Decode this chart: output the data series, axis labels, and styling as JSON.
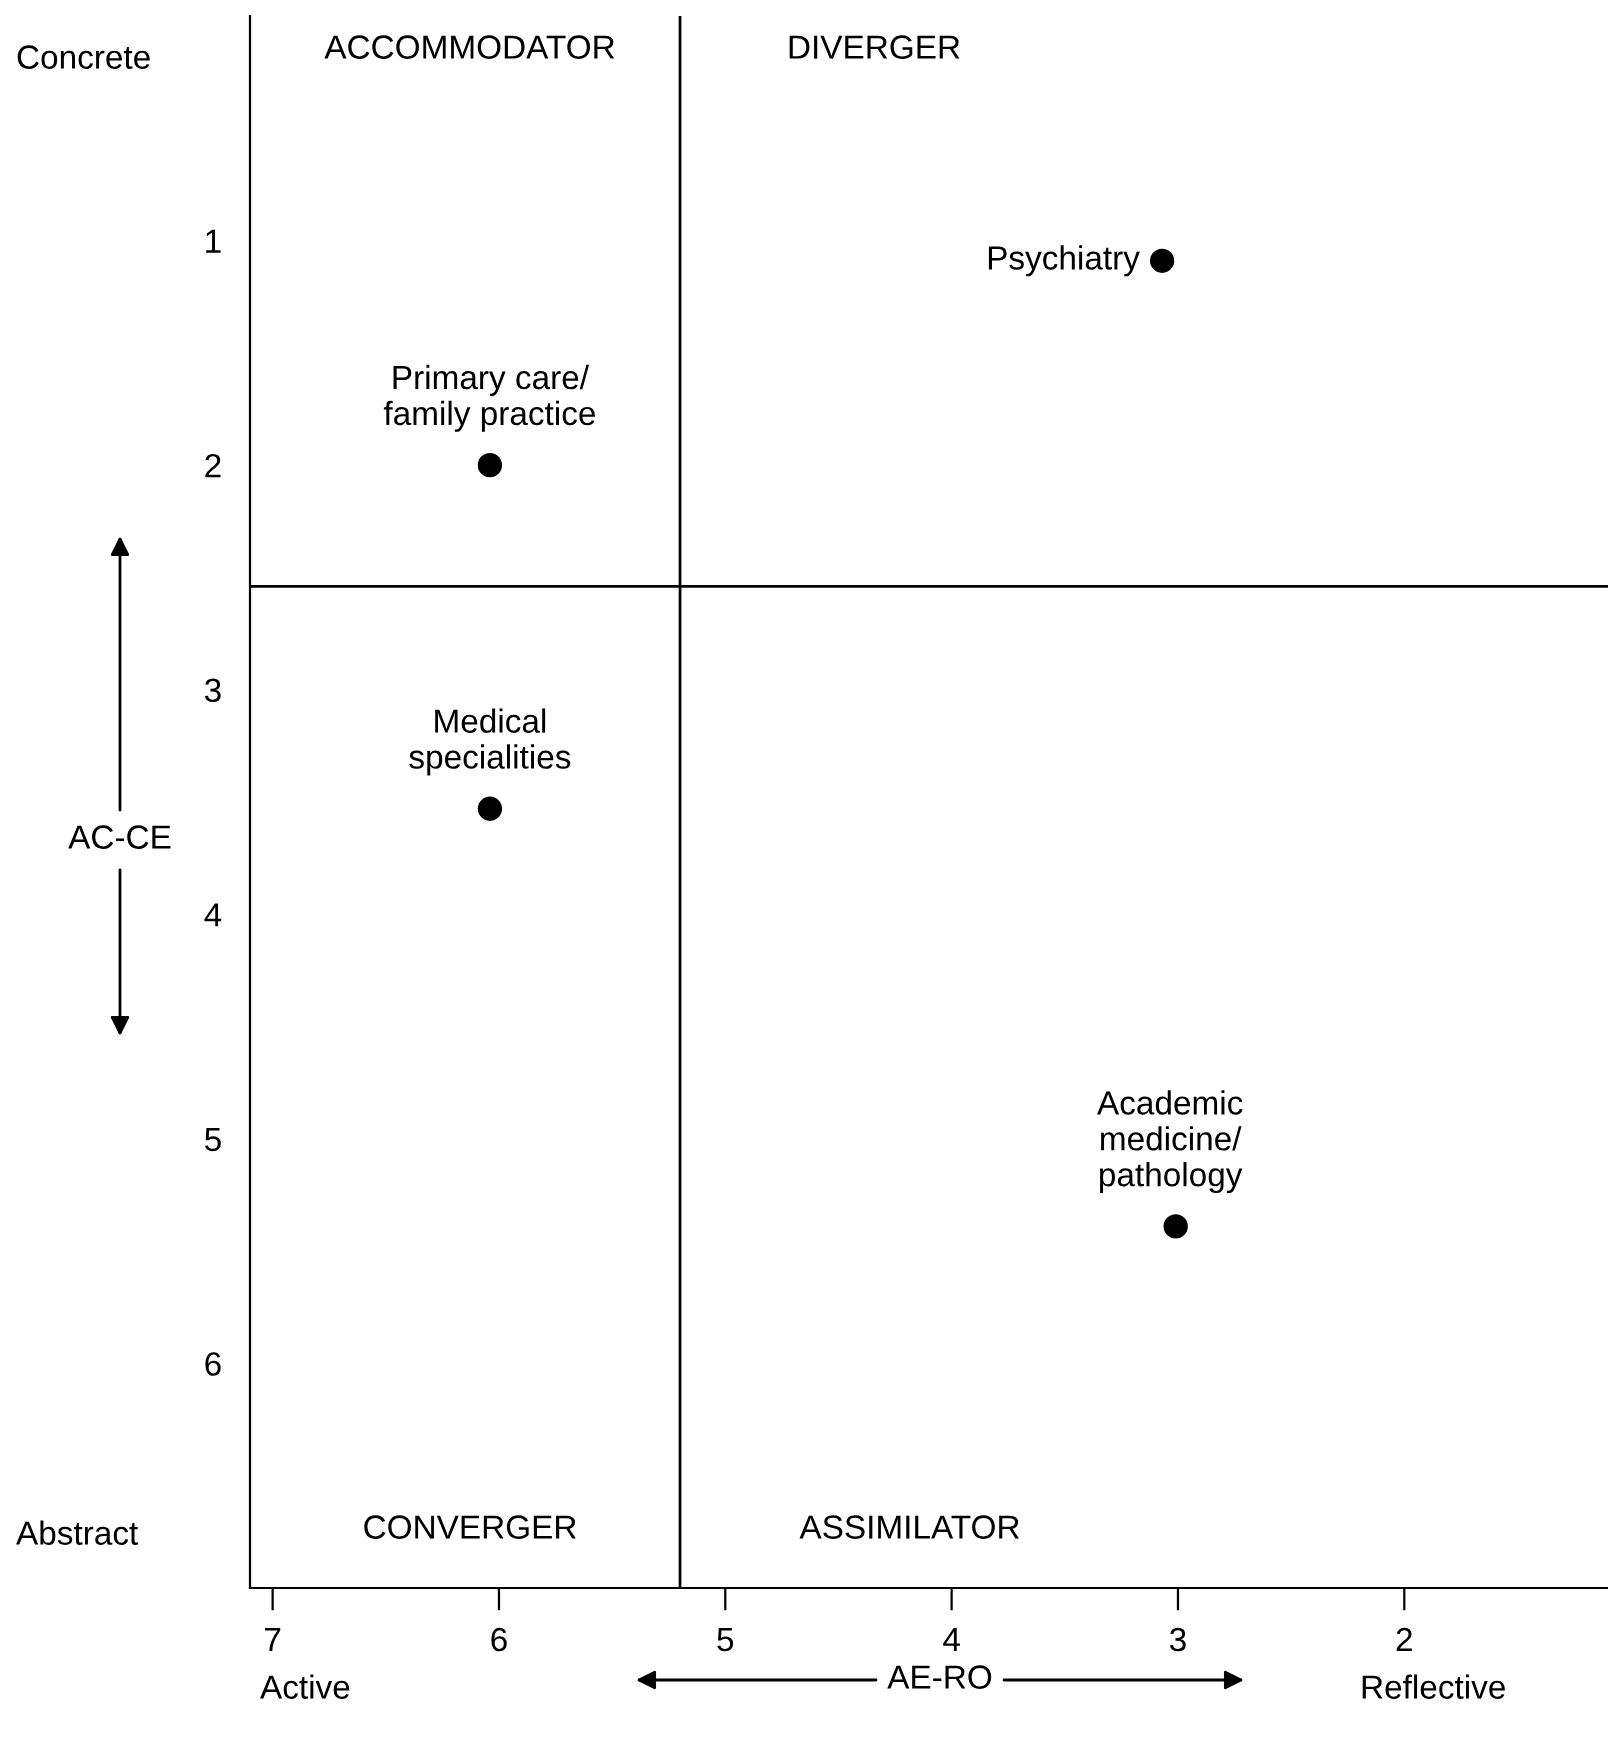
{
  "chart_data": {
    "type": "scatter",
    "xlabel": "AE-RO",
    "ylabel": "AC-CE",
    "xlim": [
      7.1,
      1.1
    ],
    "ylim": [
      7,
      0
    ],
    "xticks": [
      7,
      6,
      5,
      4,
      3,
      2
    ],
    "yticks": [
      1,
      2,
      3,
      4,
      5,
      6
    ],
    "tick_labels": "xy",
    "series": [
      {
        "name": "Psychiatry",
        "color": "#000000",
        "x": [
          3.07
        ],
        "values": [
          1.09
        ]
      },
      {
        "name": "Primary care/\nfamily practice",
        "color": "#000000",
        "x": [
          6.04
        ],
        "values": [
          2.0
        ]
      },
      {
        "name": "Medical\nspecialities",
        "color": "#000000",
        "x": [
          6.04
        ],
        "values": [
          3.53
        ]
      },
      {
        "name": "Academic\nmedicine/\npathology",
        "color": "#000000",
        "x": [
          3.01
        ],
        "values": [
          5.39
        ]
      }
    ],
    "ref_lines": [
      {
        "axis": "x",
        "value": 5.2,
        "color": "#000000"
      },
      {
        "axis": "y",
        "value": 2.54,
        "color": "#000000"
      }
    ],
    "annotations": [
      "ACCOMMODATOR",
      "DIVERGER",
      "CONVERGER",
      "ASSIMILATOR",
      "Concrete",
      "Abstract",
      "Active",
      "Reflective"
    ],
    "marker": "circle",
    "grid": false,
    "legend": false
  }
}
